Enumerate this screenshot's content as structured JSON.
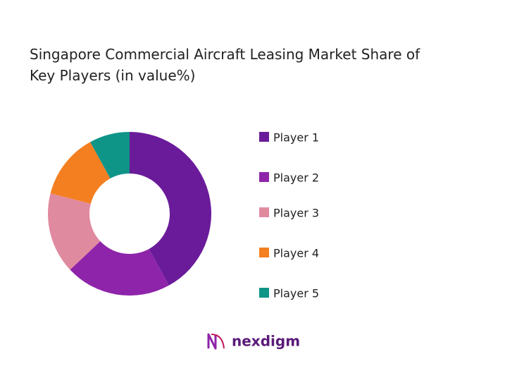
{
  "chart_data": {
    "type": "donut",
    "title": "Singapore Commercial Aircraft Leasing Market Share of Key Players (in value%)",
    "categories": [
      "Player 1",
      "Player 2",
      "Player 3",
      "Player 4",
      "Player 5"
    ],
    "values": [
      42,
      21,
      16,
      13,
      8
    ],
    "colors": [
      "#6a1b9a",
      "#8e24aa",
      "#e08aa0",
      "#f47f20",
      "#0f9488"
    ],
    "legend": "right"
  },
  "brand": "nexdigm"
}
